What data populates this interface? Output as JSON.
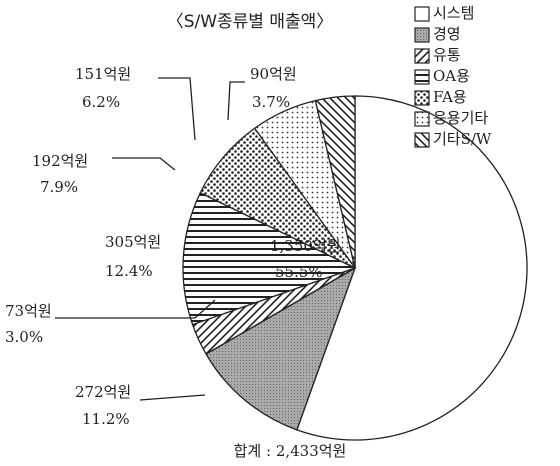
{
  "chart_data": {
    "type": "pie",
    "title": "〈S/W종류별 매출액〉",
    "categories": [
      "시스템",
      "경영",
      "유통",
      "OA용",
      "FA용",
      "응용기타",
      "기타S/W"
    ],
    "values": [
      1350,
      272,
      73,
      305,
      192,
      151,
      90
    ],
    "value_labels": [
      "1,350억원",
      "272억원",
      "73억원",
      "305억원",
      "192억원",
      "151억원",
      "90억원"
    ],
    "percents": [
      55.5,
      11.2,
      3.0,
      12.4,
      7.9,
      6.2,
      3.7
    ],
    "percent_labels": [
      "55.5%",
      "11.2%",
      "3.0%",
      "12.4%",
      "7.9%",
      "6.2%",
      "3.7%"
    ],
    "total_label": "합계 : 2,433억원"
  }
}
